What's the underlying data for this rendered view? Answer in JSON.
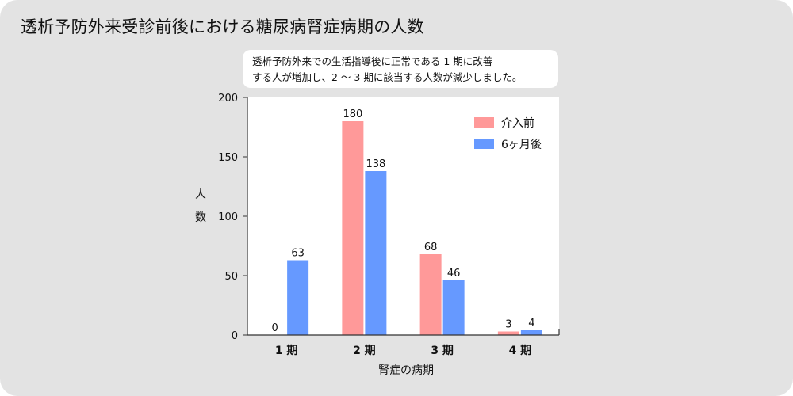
{
  "title": "透析予防外来受診前後における糖尿病腎症病期の人数",
  "note": {
    "line1": "透析予防外来での生活指導後に正常である 1 期に改善",
    "line2": "する人が増加し、2 〜 3 期に該当する人数が減少しました。"
  },
  "chart_data": {
    "type": "bar",
    "title": "透析予防外来受診前後における糖尿病腎症病期の人数",
    "xlabel": "腎症の病期",
    "ylabel": "人数",
    "categories": [
      "1 期",
      "2 期",
      "3 期",
      "4 期"
    ],
    "series": [
      {
        "name": "介入前",
        "values": [
          0,
          180,
          68,
          3
        ],
        "color": "#ff9999"
      },
      {
        "name": "6ヶ月後",
        "values": [
          63,
          138,
          46,
          4
        ],
        "color": "#6699ff"
      }
    ],
    "ylim": [
      0,
      200
    ],
    "yticks": [
      0,
      50,
      100,
      150,
      200
    ],
    "grid": false,
    "legend": "top-right",
    "data_labels": true
  }
}
